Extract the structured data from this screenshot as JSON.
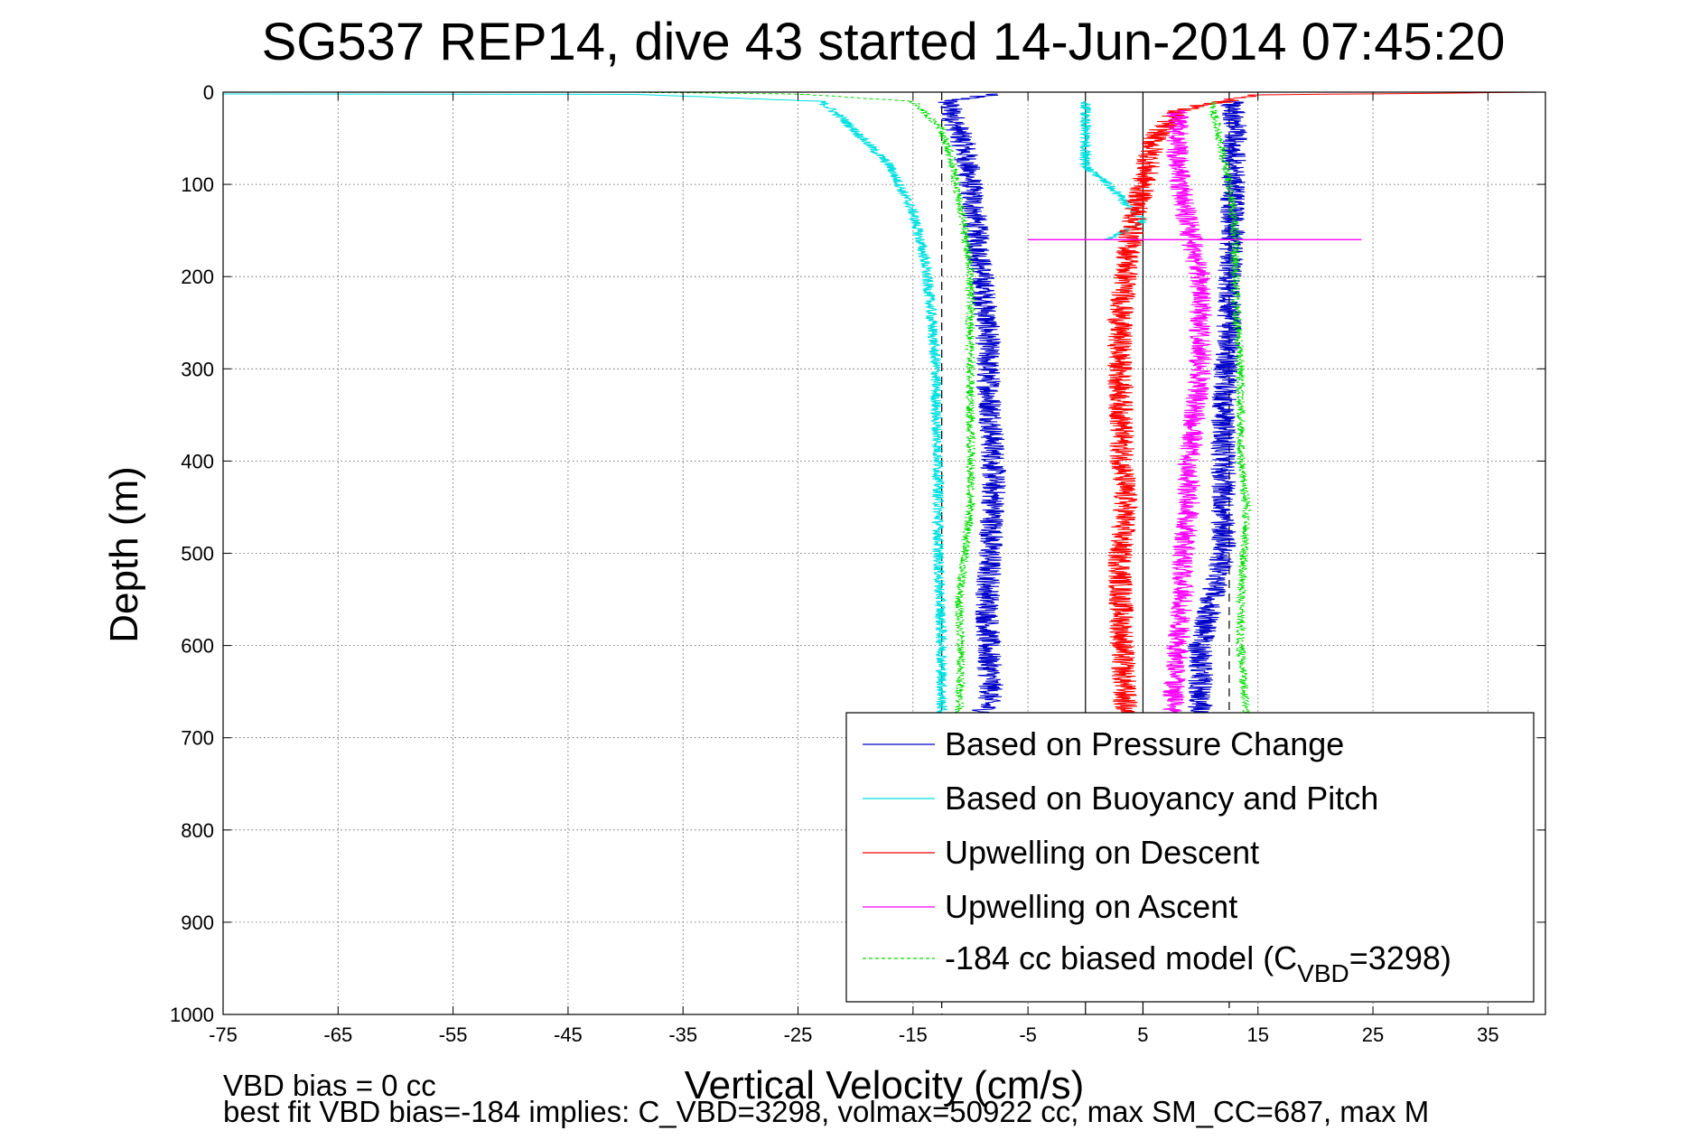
{
  "chart_data": {
    "type": "line",
    "title": "SG537 REP14, dive 43 started 14-Jun-2014 07:45:20",
    "xlabel": "Vertical Velocity (cm/s)",
    "ylabel": "Depth (m)",
    "xlim": [
      -75,
      40
    ],
    "ylim": [
      0,
      1000
    ],
    "y_reversed": true,
    "grid": true,
    "legend_position": "bottom-right",
    "x_tick_values": [
      -75,
      -65,
      -55,
      -45,
      -35,
      -25,
      -15,
      -5,
      5,
      15,
      25,
      35
    ],
    "x_tick_labels": [
      "-75",
      "-65",
      "-55",
      "-45",
      "-35",
      "-25",
      "-15",
      "-5",
      "5",
      "15",
      "25",
      "35"
    ],
    "y_tick_values": [
      0,
      100,
      200,
      300,
      400,
      500,
      600,
      700,
      800,
      900,
      1000
    ],
    "y_tick_labels": [
      "0",
      "100",
      "200",
      "300",
      "400",
      "500",
      "600",
      "700",
      "800",
      "900",
      "1000"
    ],
    "reference_lines": [
      {
        "x": -12.5,
        "style": "dashed",
        "color": "#000000"
      },
      {
        "x": 0,
        "style": "solid",
        "color": "#000000"
      },
      {
        "x": 12.5,
        "style": "dashed",
        "color": "#000000"
      },
      {
        "x": 5,
        "style": "solid",
        "color": "#000000"
      }
    ],
    "series": [
      {
        "name": "Based on Pressure Change",
        "color": "#0000c8",
        "style": "solid",
        "noise": 1.1,
        "x": [
          -8,
          -12,
          -10.5,
          -10,
          -9.5,
          -9,
          -8.5,
          -8.5,
          -8.2,
          -8,
          -8,
          -8.3,
          -8.5,
          -8.5,
          -8.2,
          -9
        ],
        "y": [
          2,
          10,
          60,
          100,
          150,
          200,
          260,
          300,
          350,
          400,
          450,
          500,
          550,
          600,
          650,
          680
        ],
        "x2": [
          10,
          10,
          11,
          12,
          12,
          12,
          12,
          12.2,
          12.5,
          12.5,
          12.8,
          12.8,
          13,
          12.8
        ],
        "y2": [
          680,
          600,
          550,
          500,
          450,
          400,
          350,
          300,
          250,
          200,
          150,
          100,
          50,
          10
        ]
      },
      {
        "name": "Based on Buoyancy and Pitch",
        "color": "#00e0e0",
        "style": "solid",
        "noise": 0.5,
        "x": [
          -75,
          -40,
          -23,
          -21,
          -17,
          -15,
          -14,
          -13.5,
          -13,
          -13,
          -12.8,
          -12.8,
          -12.8,
          -12.5,
          -12.5
        ],
        "y": [
          2,
          2,
          10,
          30,
          80,
          130,
          180,
          230,
          300,
          350,
          400,
          450,
          500,
          600,
          680
        ],
        "x2": [
          2,
          5,
          3.5,
          2,
          0,
          0,
          0
        ],
        "y2": [
          160,
          140,
          120,
          100,
          80,
          40,
          10
        ]
      },
      {
        "name": "Upwelling on Descent",
        "color": "#ff0000",
        "style": "solid",
        "noise": 1.1,
        "x": [
          40,
          15,
          8,
          6,
          5,
          4,
          3.5,
          3,
          3,
          3.2,
          3.5,
          3,
          3.2,
          3.5
        ],
        "y": [
          0,
          3,
          20,
          50,
          100,
          150,
          200,
          250,
          300,
          400,
          450,
          500,
          600,
          680
        ]
      },
      {
        "name": "Upwelling on Ascent",
        "color": "#ff00ff",
        "style": "solid",
        "noise": 1.0,
        "x": [
          7.5,
          8,
          8.5,
          8.5,
          9,
          9,
          9.5,
          10,
          10,
          10,
          9,
          8,
          8
        ],
        "y": [
          680,
          600,
          550,
          500,
          450,
          400,
          350,
          300,
          250,
          200,
          150,
          80,
          20
        ],
        "spike": {
          "y": 160,
          "x_from": -5,
          "x_to": 24
        }
      },
      {
        "name": "-184 cc biased model (C_VBD=3298)",
        "color": "#00dd00",
        "style": "dashed",
        "noise": 0.4,
        "x": [
          -40,
          -25,
          -15,
          -12.5,
          -11.5,
          -11,
          -10.5,
          -10,
          -10,
          -10,
          -10,
          -10.5,
          -11,
          -10.8,
          -11
        ],
        "y": [
          0,
          2,
          10,
          40,
          80,
          120,
          150,
          200,
          300,
          400,
          450,
          500,
          550,
          620,
          680
        ],
        "x2": [
          14,
          13.5,
          13.5,
          13.8,
          14,
          13.5,
          13.5,
          13.5,
          13.2,
          13,
          13,
          12.5,
          11
        ],
        "y2": [
          680,
          600,
          550,
          500,
          450,
          400,
          350,
          300,
          250,
          200,
          150,
          100,
          10
        ]
      }
    ],
    "legend": [
      {
        "label": "Based on Pressure Change"
      },
      {
        "label": "Based on Buoyancy and Pitch"
      },
      {
        "label": "Upwelling on Descent"
      },
      {
        "label": "Upwelling on Ascent"
      },
      {
        "label_main": "-184 cc biased model (C",
        "label_sub": "VBD",
        "label_end": "=3298)"
      }
    ],
    "annotations": [
      "VBD bias = 0 cc",
      "best fit VBD bias=-184 implies: C_VBD=3298, volmax=50922 cc, max SM_CC=687, max M"
    ]
  }
}
